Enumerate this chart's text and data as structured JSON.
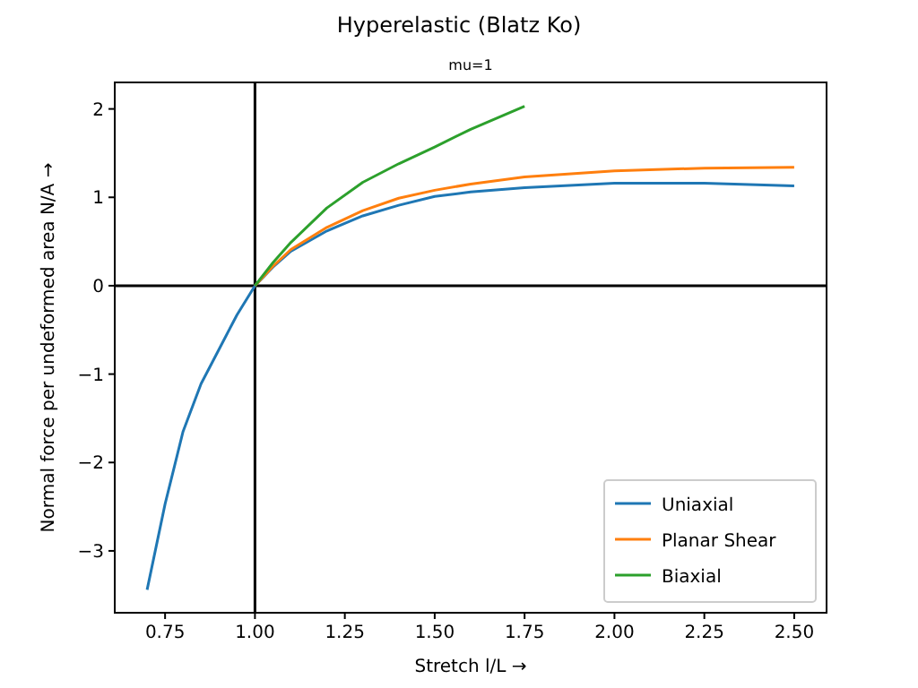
{
  "chart_data": {
    "type": "line",
    "title": "Hyperelastic (Blatz Ko)",
    "subtitle": "mu=1",
    "xlabel": "Stretch l/L  →",
    "ylabel": "Normal force per undeformed area N/A  →",
    "series": [
      {
        "name": "Uniaxial",
        "color": "#1f77b4",
        "x": [
          0.7,
          0.75,
          0.8,
          0.85,
          0.9,
          0.95,
          1.0,
          1.05,
          1.1,
          1.2,
          1.3,
          1.4,
          1.5,
          1.6,
          1.75,
          2.0,
          2.25,
          2.5
        ],
        "values": [
          -3.44,
          -2.47,
          -1.65,
          -1.11,
          -0.72,
          -0.33,
          0,
          0.21,
          0.39,
          0.62,
          0.79,
          0.91,
          1.01,
          1.06,
          1.11,
          1.16,
          1.16,
          1.13
        ]
      },
      {
        "name": "Planar Shear",
        "color": "#ff7f0e",
        "x": [
          1.0,
          1.05,
          1.1,
          1.2,
          1.3,
          1.4,
          1.5,
          1.6,
          1.75,
          2.0,
          2.25,
          2.5
        ],
        "values": [
          0,
          0.22,
          0.41,
          0.66,
          0.85,
          0.99,
          1.08,
          1.15,
          1.23,
          1.3,
          1.33,
          1.34
        ]
      },
      {
        "name": "Biaxial",
        "color": "#2ca02c",
        "x": [
          1.0,
          1.05,
          1.1,
          1.2,
          1.3,
          1.4,
          1.5,
          1.6,
          1.75
        ],
        "values": [
          0,
          0.26,
          0.49,
          0.88,
          1.17,
          1.38,
          1.57,
          1.77,
          2.03
        ]
      }
    ],
    "xlim": [
      0.61,
      2.59
    ],
    "ylim": [
      -3.7,
      2.3
    ],
    "xticks": [
      {
        "value": 0.75,
        "label": "0.75"
      },
      {
        "value": 1,
        "label": "1.00"
      },
      {
        "value": 1.25,
        "label": "1.25"
      },
      {
        "value": 1.5,
        "label": "1.50"
      },
      {
        "value": 1.75,
        "label": "1.75"
      },
      {
        "value": 2,
        "label": "2.00"
      },
      {
        "value": 2.25,
        "label": "2.25"
      },
      {
        "value": 2.5,
        "label": "2.50"
      }
    ],
    "yticks": [
      {
        "value": -3,
        "label": "−3"
      },
      {
        "value": -2,
        "label": "−2"
      },
      {
        "value": -1,
        "label": "−1"
      },
      0,
      1,
      2
    ],
    "ref_lines": [
      {
        "axis": "x",
        "value": 1,
        "color": "#000000"
      },
      {
        "axis": "y",
        "value": 0,
        "color": "#000000"
      }
    ],
    "legend": "bottom right",
    "grid": false,
    "marker": "none",
    "line_style": "solid"
  }
}
